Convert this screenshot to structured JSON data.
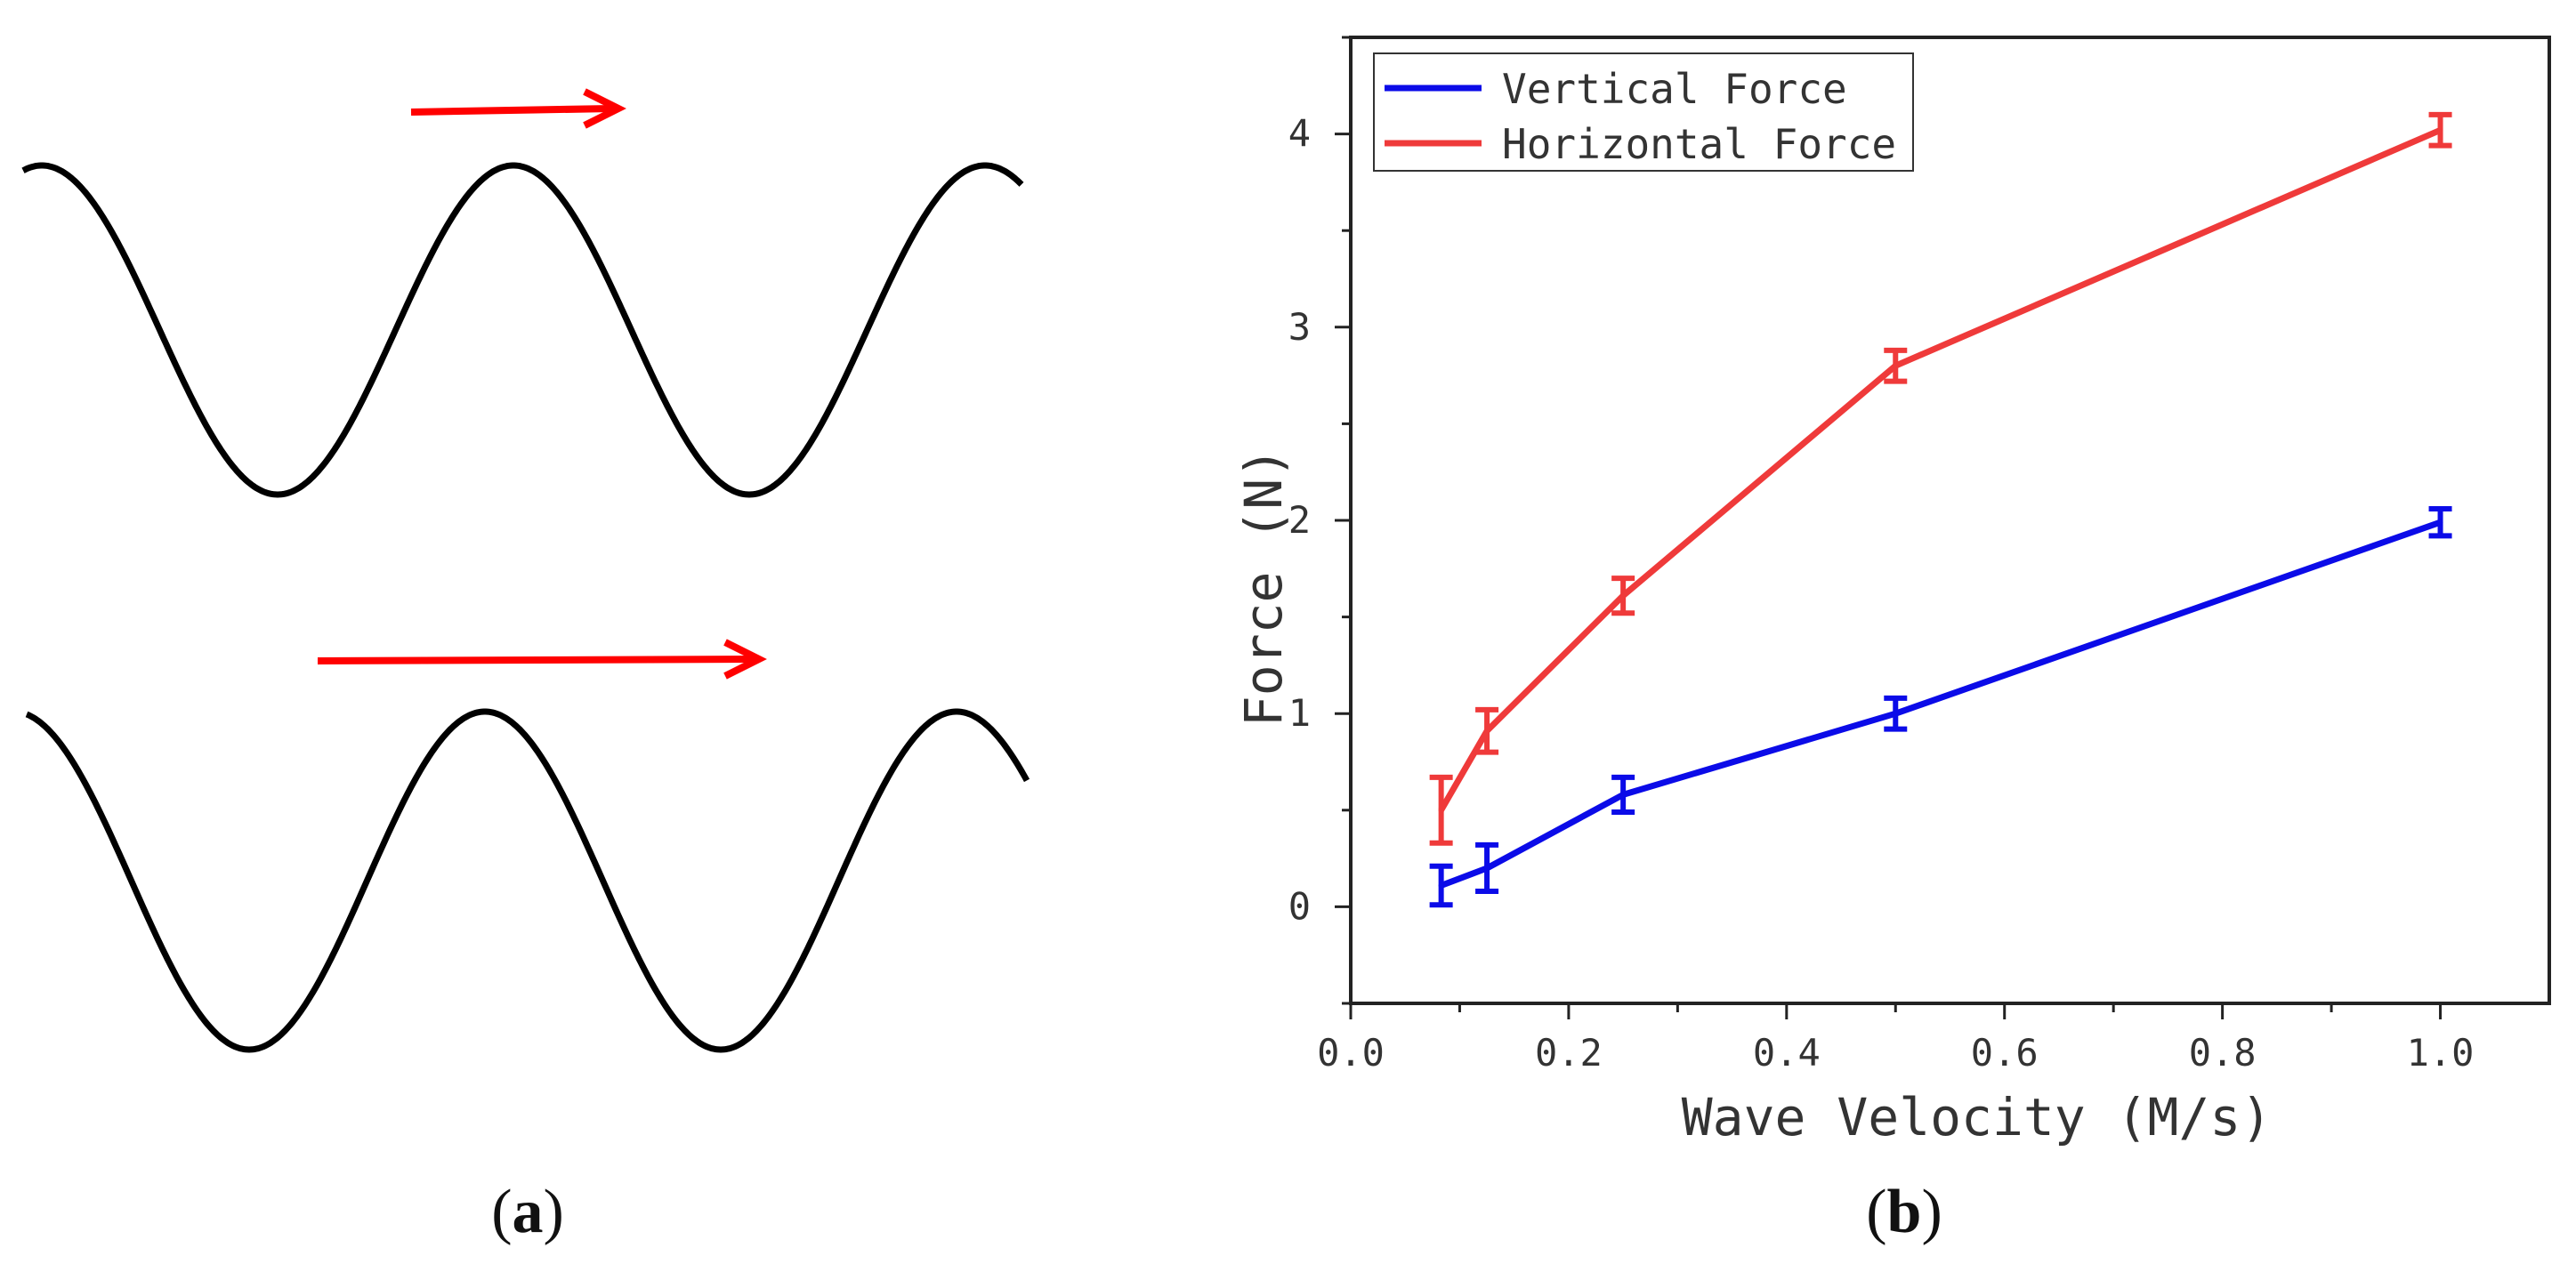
{
  "panel_a": {
    "label_letter": "a",
    "paren_open": "(",
    "paren_close": ")",
    "wave_color": "#000000",
    "arrow_color": "#ff0000"
  },
  "panel_b": {
    "label_letter": "b",
    "paren_open": "(",
    "paren_close": ")"
  },
  "chart_data": {
    "type": "line",
    "title": "",
    "xlabel": "Wave Velocity (M/s)",
    "ylabel": "Force (N)",
    "xlim": [
      0.0,
      1.1
    ],
    "ylim": [
      -0.5,
      4.5
    ],
    "x_ticks": [
      {
        "value": 0.0,
        "label": "0.0"
      },
      {
        "value": 0.2,
        "label": "0.2"
      },
      {
        "value": 0.4,
        "label": "0.4"
      },
      {
        "value": 0.6,
        "label": "0.6"
      },
      {
        "value": 0.8,
        "label": "0.8"
      },
      {
        "value": 1.0,
        "label": "1.0"
      }
    ],
    "y_ticks": [
      {
        "value": 0,
        "label": "0"
      },
      {
        "value": 1,
        "label": "1"
      },
      {
        "value": 2,
        "label": "2"
      },
      {
        "value": 3,
        "label": "3"
      },
      {
        "value": 4,
        "label": "4"
      }
    ],
    "grid": false,
    "legend_position": "top-left",
    "x": [
      0.083,
      0.125,
      0.25,
      0.5,
      1.0
    ],
    "series": [
      {
        "name": "Vertical Force",
        "color": "#0b0be8",
        "values": [
          0.11,
          0.2,
          0.58,
          1.0,
          1.99
        ],
        "errors": [
          0.1,
          0.12,
          0.09,
          0.08,
          0.07
        ]
      },
      {
        "name": "Horizontal Force",
        "color": "#ef3a3a",
        "values": [
          0.5,
          0.91,
          1.61,
          2.8,
          4.02
        ],
        "errors": [
          0.17,
          0.11,
          0.09,
          0.08,
          0.08
        ]
      }
    ]
  }
}
